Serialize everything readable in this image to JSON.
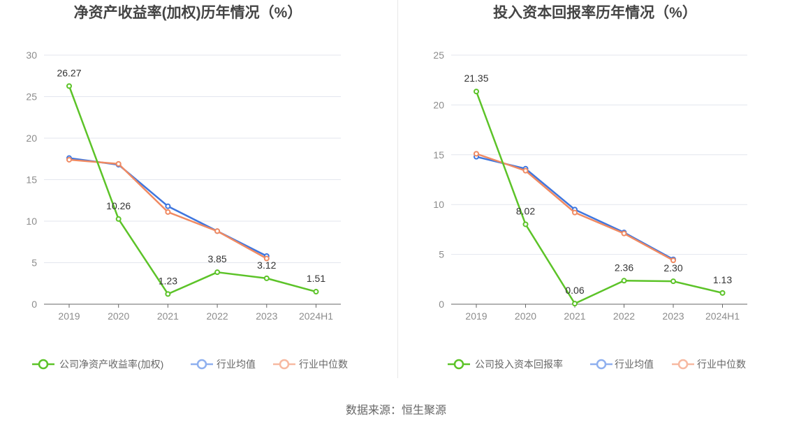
{
  "colors": {
    "company": "#5cc328",
    "industry_avg": "#3f76de",
    "industry_median": "#f08a62",
    "legend_avg": "#8fb0ef",
    "legend_median": "#f7b9a1",
    "grid": "#e3e6ee",
    "axis": "#666666"
  },
  "source_text": "数据来源：恒生聚源",
  "chart_data": [
    {
      "type": "line",
      "title": "净资产收益率(加权)历年情况（%）",
      "categories": [
        "2019",
        "2020",
        "2021",
        "2022",
        "2023",
        "2024H1"
      ],
      "ylim": [
        0,
        30
      ],
      "yticks": [
        0,
        5,
        10,
        15,
        20,
        25,
        30
      ],
      "grid": true,
      "legend_position": "bottom",
      "series": [
        {
          "name": "公司净资产收益率(加权)",
          "values": [
            26.27,
            10.26,
            1.23,
            3.85,
            3.12,
            1.51
          ],
          "labels": [
            "26.27",
            "10.26",
            "1.23",
            "3.85",
            "3.12",
            "1.51"
          ]
        },
        {
          "name": "行业均值",
          "values": [
            17.6,
            16.8,
            11.8,
            8.8,
            5.8,
            null
          ]
        },
        {
          "name": "行业中位数",
          "values": [
            17.4,
            16.9,
            11.1,
            8.8,
            5.5,
            null
          ]
        }
      ]
    },
    {
      "type": "line",
      "title": "投入资本回报率历年情况（%）",
      "categories": [
        "2019",
        "2020",
        "2021",
        "2022",
        "2023",
        "2024H1"
      ],
      "ylim": [
        0,
        25
      ],
      "yticks": [
        0,
        5,
        10,
        15,
        20,
        25
      ],
      "grid": true,
      "legend_position": "bottom",
      "series": [
        {
          "name": "公司投入资本回报率",
          "values": [
            21.35,
            8.02,
            0.06,
            2.36,
            2.3,
            1.13
          ],
          "labels": [
            "21.35",
            "8.02",
            "0.06",
            "2.36",
            "2.30",
            "1.13"
          ]
        },
        {
          "name": "行业均值",
          "values": [
            14.8,
            13.6,
            9.5,
            7.2,
            4.5,
            null
          ]
        },
        {
          "name": "行业中位数",
          "values": [
            15.1,
            13.4,
            9.2,
            7.1,
            4.4,
            null
          ]
        }
      ]
    }
  ]
}
